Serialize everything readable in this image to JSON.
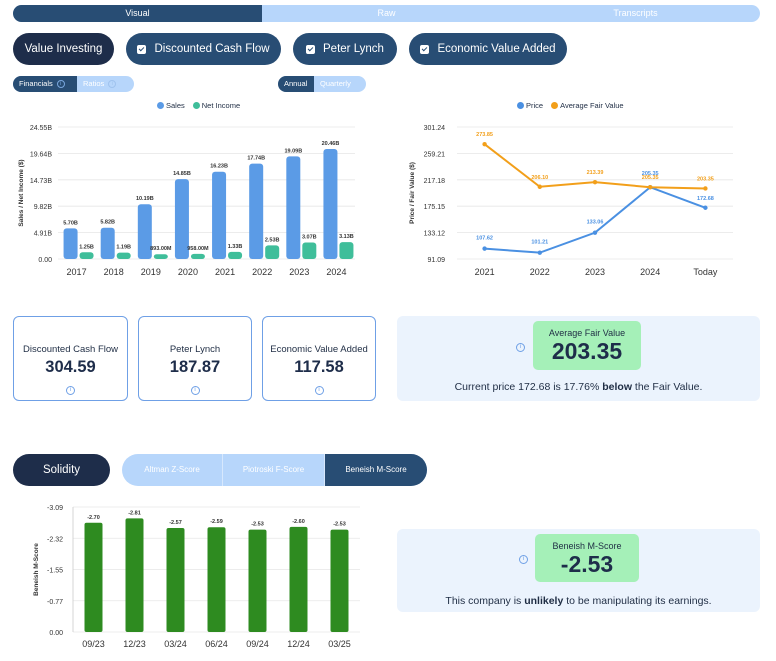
{
  "top_tabs": [
    {
      "label": "Visual",
      "active": true
    },
    {
      "label": "Raw",
      "active": false
    },
    {
      "label": "Transcripts",
      "active": false
    }
  ],
  "methods": [
    {
      "label": "Value Investing",
      "checked": false
    },
    {
      "label": "Discounted Cash Flow",
      "checked": true
    },
    {
      "label": "Peter Lynch",
      "checked": true
    },
    {
      "label": "Economic Value Added",
      "checked": true
    }
  ],
  "statement_toggle": {
    "financials": "Financials",
    "ratios": "Ratios"
  },
  "period_toggle": {
    "annual": "Annual",
    "quarterly": "Quarterly"
  },
  "colors": {
    "sales": "#5b9be6",
    "net_income": "#3fbe9a",
    "price": "#4a90e2",
    "fair_value": "#f29f1a",
    "mscore_bar": "#2e8b20",
    "navy": "#284d74"
  },
  "chart_data": [
    {
      "type": "bar",
      "categories": [
        "2017",
        "2018",
        "2019",
        "2020",
        "2021",
        "2022",
        "2023",
        "2024"
      ],
      "series": [
        {
          "name": "Sales",
          "values": [
            5.7,
            5.82,
            10.19,
            14.85,
            16.23,
            17.74,
            19.09,
            20.46
          ],
          "labels": [
            "5.70B",
            "5.82B",
            "10.19B",
            "14.85B",
            "16.23B",
            "17.74B",
            "19.09B",
            "20.46B"
          ]
        },
        {
          "name": "Net Income",
          "values": [
            1.25,
            1.19,
            0.893,
            0.958,
            1.33,
            2.53,
            3.07,
            3.13
          ],
          "labels": [
            "1.25B",
            "1.19B",
            "893.00M",
            "958.00M",
            "1.33B",
            "2.53B",
            "3.07B",
            "3.13B"
          ]
        }
      ],
      "ylabel": "Sales / Net Income ($)",
      "yticks": [
        "0.00",
        "4.91B",
        "9.82B",
        "14.73B",
        "19.64B",
        "24.55B"
      ],
      "ylim": [
        0,
        24.55
      ],
      "legend": "top-center"
    },
    {
      "type": "line",
      "categories": [
        "2021",
        "2022",
        "2023",
        "2024",
        "Today"
      ],
      "series": [
        {
          "name": "Price",
          "values": [
            107.62,
            101.21,
            133.06,
            205.35,
            172.68
          ],
          "labels": [
            "107.62",
            "101.21",
            "133.06",
            "205.35",
            "172.68"
          ]
        },
        {
          "name": "Average Fair Value",
          "values": [
            273.85,
            206.1,
            213.39,
            205.35,
            203.35
          ],
          "labels": [
            "273.85",
            "206.10",
            "213.39",
            "205.35",
            "203.35"
          ]
        }
      ],
      "ylabel": "Price / Fair Value ($)",
      "yticks": [
        "91.09",
        "133.12",
        "175.15",
        "217.18",
        "259.21",
        "301.24"
      ],
      "ylim": [
        91.09,
        301.24
      ],
      "legend": "top-center"
    },
    {
      "type": "bar",
      "categories": [
        "09/23",
        "12/23",
        "03/24",
        "06/24",
        "09/24",
        "12/24",
        "03/25"
      ],
      "series": [
        {
          "name": "",
          "values": [
            -2.7,
            -2.81,
            -2.57,
            -2.59,
            -2.53,
            -2.6,
            -2.53
          ],
          "labels": [
            "-2.70",
            "-2.81",
            "-2.57",
            "-2.59",
            "-2.53",
            "-2.60",
            "-2.53"
          ]
        }
      ],
      "ylabel": "Beneish M-Score",
      "yticks": [
        "0.00",
        "-0.77",
        "-1.55",
        "-2.32",
        "-3.09"
      ],
      "ylim": [
        0,
        -3.09
      ]
    }
  ],
  "valuation_cards": [
    {
      "label": "Discounted Cash Flow",
      "value": "304.59"
    },
    {
      "label": "Peter Lynch",
      "value": "187.87"
    },
    {
      "label": "Economic Value Added",
      "value": "117.58"
    }
  ],
  "fair_value": {
    "label": "Average Fair Value",
    "value": "203.35",
    "note_prefix": "Current price 172.68 is 17.76%",
    "note_strong": "below",
    "note_suffix": "the Fair Value."
  },
  "solidity": {
    "button": "Solidity",
    "tabs": [
      {
        "label": "Altman Z-Score",
        "active": false
      },
      {
        "label": "Piotroski F-Score",
        "active": false
      },
      {
        "label": "Beneish M-Score",
        "active": true
      }
    ]
  },
  "mscore": {
    "label": "Beneish M-Score",
    "value": "-2.53",
    "note_prefix": "This company is",
    "note_strong": "unlikely",
    "note_suffix": "to be manipulating its earnings."
  }
}
